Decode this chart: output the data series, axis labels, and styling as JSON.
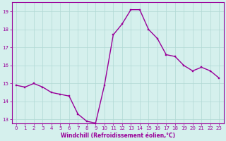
{
  "x": [
    0,
    1,
    2,
    3,
    4,
    5,
    6,
    7,
    8,
    9,
    10,
    11,
    12,
    13,
    14,
    15,
    16,
    17,
    18,
    19,
    20,
    21,
    22,
    23
  ],
  "y": [
    14.9,
    14.8,
    15.0,
    14.8,
    14.5,
    14.4,
    14.3,
    13.3,
    12.9,
    12.8,
    14.9,
    17.7,
    18.3,
    19.1,
    19.1,
    18.0,
    17.5,
    16.6,
    16.5,
    16.0,
    15.7,
    15.9,
    15.7,
    15.3
  ],
  "line_color": "#990099",
  "marker_color": "#990099",
  "bg_color": "#d5f0ed",
  "grid_color": "#b0d8d4",
  "xlabel": "Windchill (Refroidissement éolien,°C)",
  "xlabel_color": "#990099",
  "tick_color": "#990099",
  "spine_color": "#990099",
  "ylim": [
    12.8,
    19.5
  ],
  "xlim": [
    -0.5,
    23.5
  ],
  "yticks": [
    13,
    14,
    15,
    16,
    17,
    18,
    19
  ],
  "xticks": [
    0,
    1,
    2,
    3,
    4,
    5,
    6,
    7,
    8,
    9,
    10,
    11,
    12,
    13,
    14,
    15,
    16,
    17,
    18,
    19,
    20,
    21,
    22,
    23
  ],
  "linewidth": 1.0,
  "markersize": 2.0,
  "tick_fontsize": 5.0,
  "xlabel_fontsize": 5.5
}
